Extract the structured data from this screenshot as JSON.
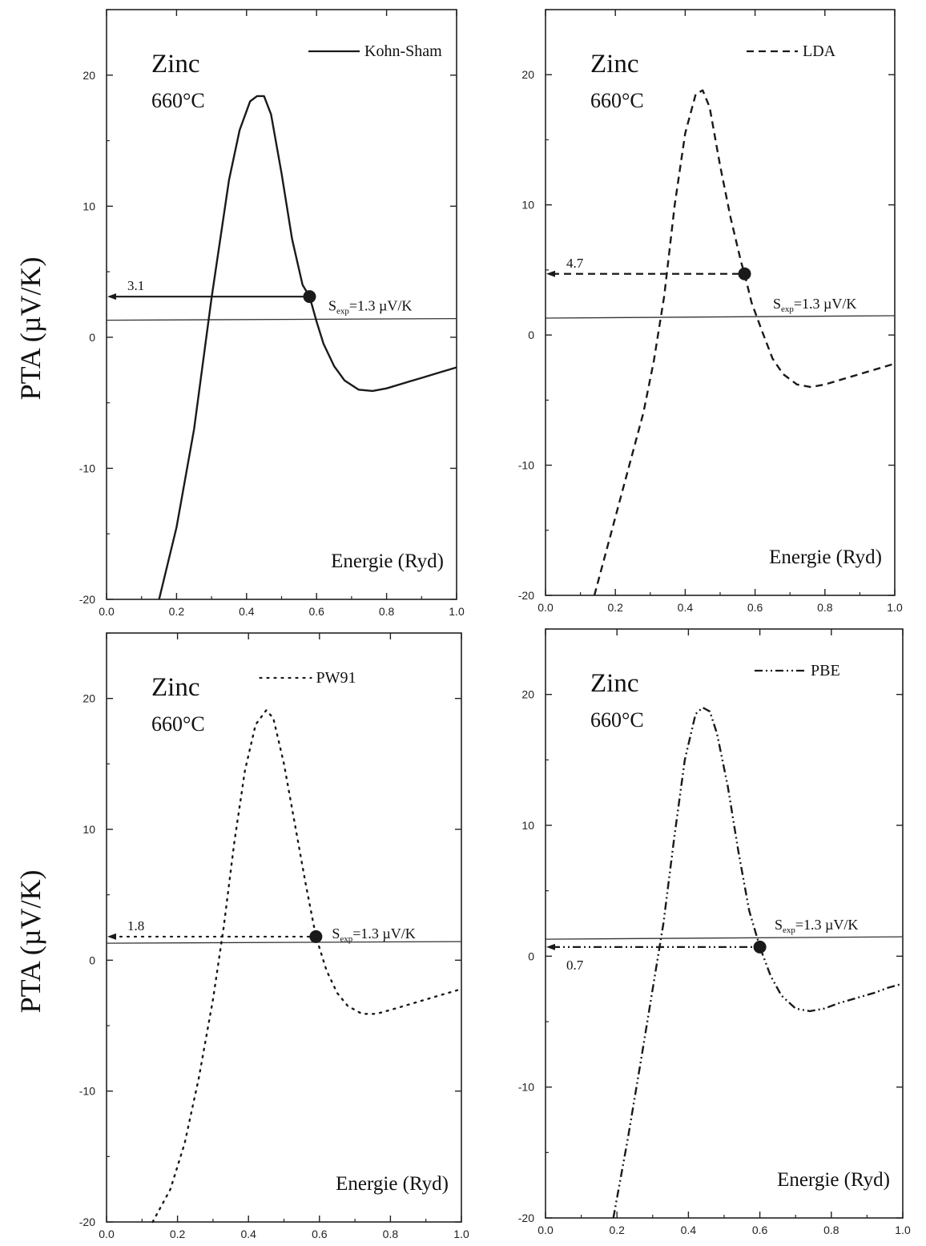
{
  "ylabel": "PTA (µV/K)",
  "chart_data": [
    {
      "type": "line",
      "series": [
        {
          "name": "Kohn-Sham",
          "x": [
            0.15,
            0.2,
            0.25,
            0.3,
            0.35,
            0.38,
            0.41,
            0.43,
            0.45,
            0.47,
            0.5,
            0.53,
            0.56,
            0.58,
            0.6,
            0.62,
            0.65,
            0.68,
            0.72,
            0.76,
            0.8,
            0.85,
            0.9,
            0.95,
            1.0
          ],
          "y": [
            -20,
            -14.5,
            -7,
            3,
            12,
            15.8,
            18,
            18.4,
            18.4,
            17,
            12.5,
            7.5,
            4,
            3.1,
            1.2,
            -0.5,
            -2.2,
            -3.3,
            -4,
            -4.1,
            -3.9,
            -3.5,
            -3.1,
            -2.7,
            -2.3
          ]
        }
      ],
      "style": "solid",
      "title": "Zinc",
      "subtitle": "660°C",
      "xlabel": "Energie (Ryd)",
      "xlim": [
        0.0,
        1.0
      ],
      "ylim": [
        -20,
        25
      ],
      "xticks": [
        "0.0",
        "0.2",
        "0.4",
        "0.6",
        "0.8",
        "1.0"
      ],
      "yticks": [
        "-20",
        "-10",
        "0",
        "10",
        "20"
      ],
      "s_exp_label": "S",
      "s_exp_sub": "exp",
      "s_exp_value": "=1.3 µV/K",
      "s_exp": 1.3,
      "marker": {
        "x": 0.58,
        "y": 3.1,
        "label": "3.1"
      },
      "legend_position": "top-right"
    },
    {
      "type": "line",
      "series": [
        {
          "name": "LDA",
          "x": [
            0.14,
            0.2,
            0.24,
            0.28,
            0.31,
            0.34,
            0.37,
            0.4,
            0.43,
            0.45,
            0.47,
            0.5,
            0.53,
            0.56,
            0.57,
            0.59,
            0.62,
            0.65,
            0.68,
            0.72,
            0.76,
            0.8,
            0.85,
            0.9,
            0.95,
            1.0
          ],
          "y": [
            -20,
            -14,
            -10,
            -6,
            -2,
            3,
            10,
            15.5,
            18.5,
            18.8,
            17.5,
            13,
            9,
            5.6,
            4.7,
            2.5,
            0.3,
            -1.8,
            -3,
            -3.8,
            -4,
            -3.8,
            -3.4,
            -3,
            -2.6,
            -2.2
          ]
        }
      ],
      "style": "dashed",
      "title": "Zinc",
      "subtitle": "660°C",
      "xlabel": "Energie (Ryd)",
      "xlim": [
        0.0,
        1.0
      ],
      "ylim": [
        -20,
        25
      ],
      "xticks": [
        "0.0",
        "0.2",
        "0.4",
        "0.6",
        "0.8",
        "1.0"
      ],
      "yticks": [
        "-20",
        "-10",
        "0",
        "10",
        "20"
      ],
      "s_exp_label": "S",
      "s_exp_sub": "exp",
      "s_exp_value": "=1.3 µV/K",
      "s_exp": 1.3,
      "marker": {
        "x": 0.57,
        "y": 4.7,
        "label": "4.7"
      },
      "legend_position": "top-right"
    },
    {
      "type": "line",
      "series": [
        {
          "name": "PW91",
          "x": [
            0.13,
            0.18,
            0.22,
            0.26,
            0.3,
            0.33,
            0.36,
            0.39,
            0.42,
            0.45,
            0.47,
            0.5,
            0.53,
            0.56,
            0.59,
            0.62,
            0.65,
            0.68,
            0.72,
            0.76,
            0.8,
            0.85,
            0.9,
            0.95,
            1.0
          ],
          "y": [
            -20,
            -17.5,
            -14,
            -9,
            -3,
            2.5,
            9,
            14.5,
            18,
            19.1,
            18.5,
            15,
            10.5,
            6,
            1.8,
            -0.8,
            -2.5,
            -3.5,
            -4.1,
            -4.1,
            -3.8,
            -3.4,
            -3,
            -2.6,
            -2.2
          ]
        }
      ],
      "style": "dotted",
      "title": "Zinc",
      "subtitle": "660°C",
      "xlabel": "Energie (Ryd)",
      "xlim": [
        0.0,
        1.0
      ],
      "ylim": [
        -20,
        25
      ],
      "xticks": [
        "0.0",
        "0.2",
        "0.4",
        "0.6",
        "0.8",
        "1.0"
      ],
      "yticks": [
        "-20",
        "-10",
        "0",
        "10",
        "20"
      ],
      "s_exp_label": "S",
      "s_exp_sub": "exp",
      "s_exp_value": "=1.3 µV/K",
      "s_exp": 1.3,
      "marker": {
        "x": 0.59,
        "y": 1.8,
        "label": "1.8"
      },
      "legend_position": "top-right"
    },
    {
      "type": "line",
      "series": [
        {
          "name": "PBE",
          "x": [
            0.19,
            0.23,
            0.27,
            0.3,
            0.33,
            0.36,
            0.39,
            0.42,
            0.44,
            0.46,
            0.48,
            0.51,
            0.54,
            0.57,
            0.6,
            0.63,
            0.66,
            0.7,
            0.74,
            0.78,
            0.82,
            0.87,
            0.92,
            0.96,
            1.0
          ],
          "y": [
            -20,
            -14,
            -7.5,
            -2.5,
            2.5,
            9,
            15,
            18.5,
            19,
            18.7,
            17,
            13,
            8,
            3.5,
            0.7,
            -1.5,
            -3,
            -4,
            -4.2,
            -4,
            -3.6,
            -3.2,
            -2.8,
            -2.4,
            -2.1
          ]
        }
      ],
      "style": "dashdot",
      "title": "Zinc",
      "subtitle": "660°C",
      "xlabel": "Energie (Ryd)",
      "xlim": [
        0.0,
        1.0
      ],
      "ylim": [
        -20,
        25
      ],
      "xticks": [
        "0.0",
        "0.2",
        "0.4",
        "0.6",
        "0.8",
        "1.0"
      ],
      "yticks": [
        "-20",
        "-10",
        "0",
        "10",
        "20"
      ],
      "s_exp_label": "S",
      "s_exp_sub": "exp",
      "s_exp_value": "=1.3 µV/K",
      "s_exp": 1.3,
      "marker": {
        "x": 0.6,
        "y": 0.7,
        "label": "0.7"
      },
      "legend_position": "top-right"
    }
  ]
}
